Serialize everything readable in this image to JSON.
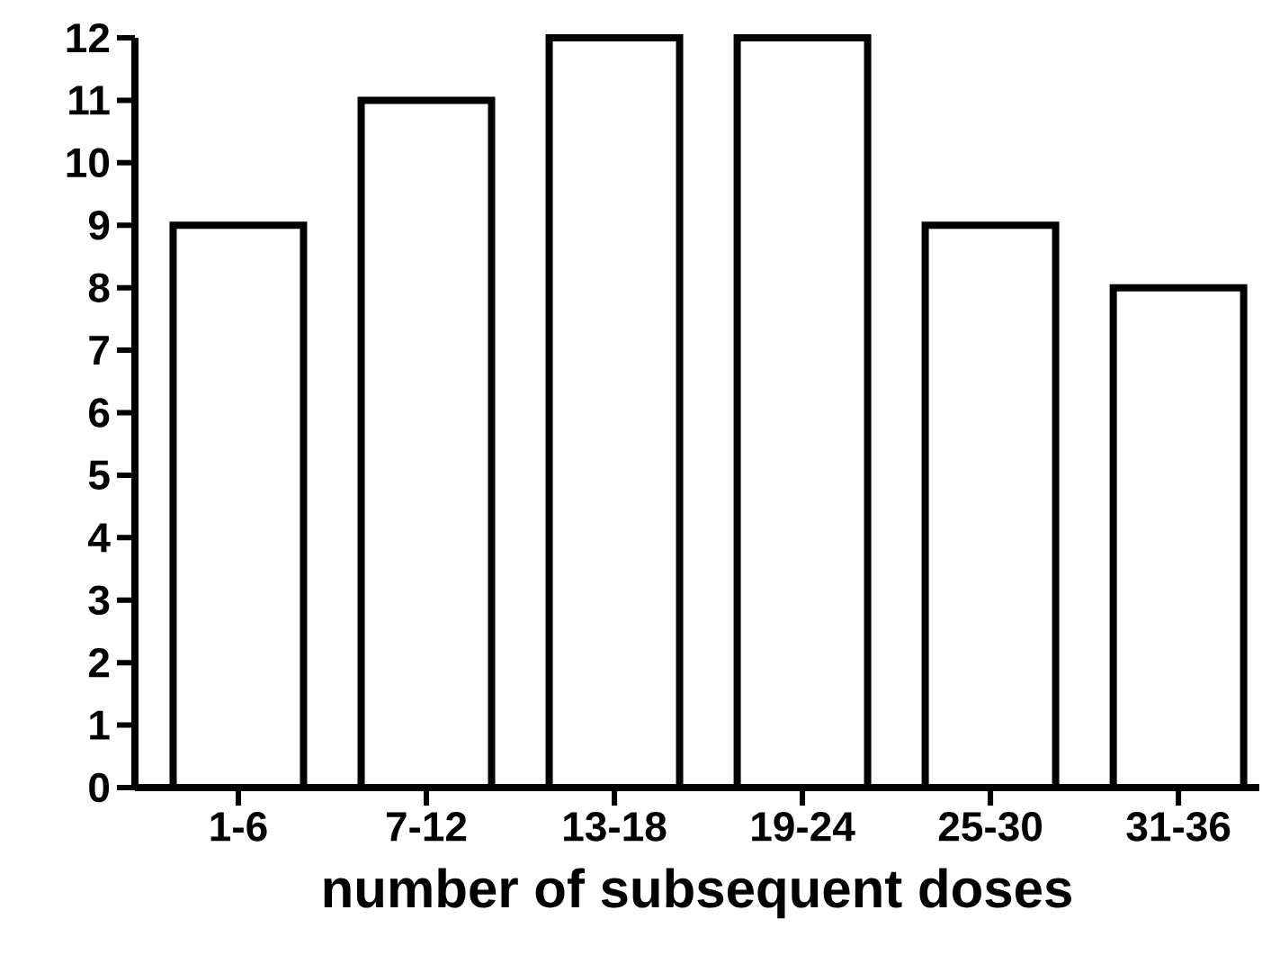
{
  "chart_data": {
    "type": "bar",
    "xlabel": "number of subsequent doses",
    "categories": [
      "1-6",
      "7-12",
      "13-18",
      "19-24",
      "25-30",
      "31-36"
    ],
    "values": [
      9,
      11,
      12,
      12,
      9,
      8
    ],
    "color": "#ffffff",
    "ylim": [
      0,
      12
    ],
    "yticks": [
      0,
      1,
      2,
      3,
      4,
      5,
      6,
      7,
      8,
      9,
      10,
      11,
      12
    ]
  }
}
